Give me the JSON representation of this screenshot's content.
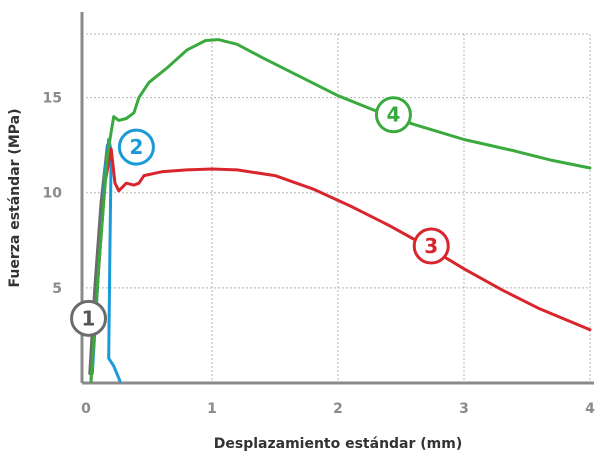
{
  "chart_data": {
    "type": "line",
    "title": "",
    "xlabel": "Desplazamiento estándar (mm)",
    "ylabel": "Fuerza estándar (MPa)",
    "xlim": [
      0,
      4
    ],
    "ylim": [
      0,
      19.5
    ],
    "x_ticks": [
      0,
      1,
      2,
      3,
      4
    ],
    "y_ticks": [
      5,
      10,
      15
    ],
    "grid": true,
    "series": [
      {
        "name": "1",
        "color": "#6b6b6b",
        "points": [
          [
            0.03,
            0.5
          ],
          [
            0.07,
            5
          ],
          [
            0.12,
            9.5
          ],
          [
            0.17,
            12.5
          ]
        ],
        "label_at": [
          0.02,
          3.4
        ]
      },
      {
        "name": "2",
        "color": "#1a9ad6",
        "points": [
          [
            0.05,
            0.5
          ],
          [
            0.1,
            6
          ],
          [
            0.15,
            11
          ],
          [
            0.18,
            12.8
          ],
          [
            0.2,
            12.2
          ],
          [
            0.19,
            7
          ],
          [
            0.18,
            1.3
          ],
          [
            0.22,
            0.9
          ],
          [
            0.27,
            0.1
          ]
        ],
        "label_at": [
          0.4,
          12.4
        ]
      },
      {
        "name": "3",
        "color": "#d9262e",
        "points": [
          [
            0.04,
            0.1
          ],
          [
            0.1,
            6
          ],
          [
            0.15,
            10.5
          ],
          [
            0.2,
            12.3
          ],
          [
            0.23,
            10.5
          ],
          [
            0.26,
            10.1
          ],
          [
            0.32,
            10.5
          ],
          [
            0.38,
            10.4
          ],
          [
            0.42,
            10.5
          ],
          [
            0.46,
            10.9
          ],
          [
            0.6,
            11.1
          ],
          [
            0.8,
            11.2
          ],
          [
            1.0,
            11.25
          ],
          [
            1.2,
            11.2
          ],
          [
            1.5,
            10.9
          ],
          [
            1.8,
            10.2
          ],
          [
            2.1,
            9.3
          ],
          [
            2.4,
            8.3
          ],
          [
            2.7,
            7.2
          ],
          [
            3.0,
            6.0
          ],
          [
            3.3,
            4.9
          ],
          [
            3.6,
            3.9
          ],
          [
            4.0,
            2.8
          ]
        ],
        "label_at": [
          2.74,
          7.2
        ]
      },
      {
        "name": "4",
        "color": "#3aaa3f",
        "points": [
          [
            0.04,
            0.1
          ],
          [
            0.1,
            6
          ],
          [
            0.17,
            12
          ],
          [
            0.22,
            14.0
          ],
          [
            0.26,
            13.8
          ],
          [
            0.32,
            13.9
          ],
          [
            0.38,
            14.2
          ],
          [
            0.42,
            15.0
          ],
          [
            0.5,
            15.8
          ],
          [
            0.65,
            16.6
          ],
          [
            0.8,
            17.5
          ],
          [
            0.95,
            18.0
          ],
          [
            1.05,
            18.05
          ],
          [
            1.2,
            17.8
          ],
          [
            1.4,
            17.1
          ],
          [
            1.7,
            16.1
          ],
          [
            2.0,
            15.1
          ],
          [
            2.3,
            14.3
          ],
          [
            2.6,
            13.6
          ],
          [
            3.0,
            12.8
          ],
          [
            3.4,
            12.2
          ],
          [
            3.7,
            11.7
          ],
          [
            4.0,
            11.3
          ]
        ],
        "label_at": [
          2.44,
          14.1
        ]
      }
    ]
  }
}
